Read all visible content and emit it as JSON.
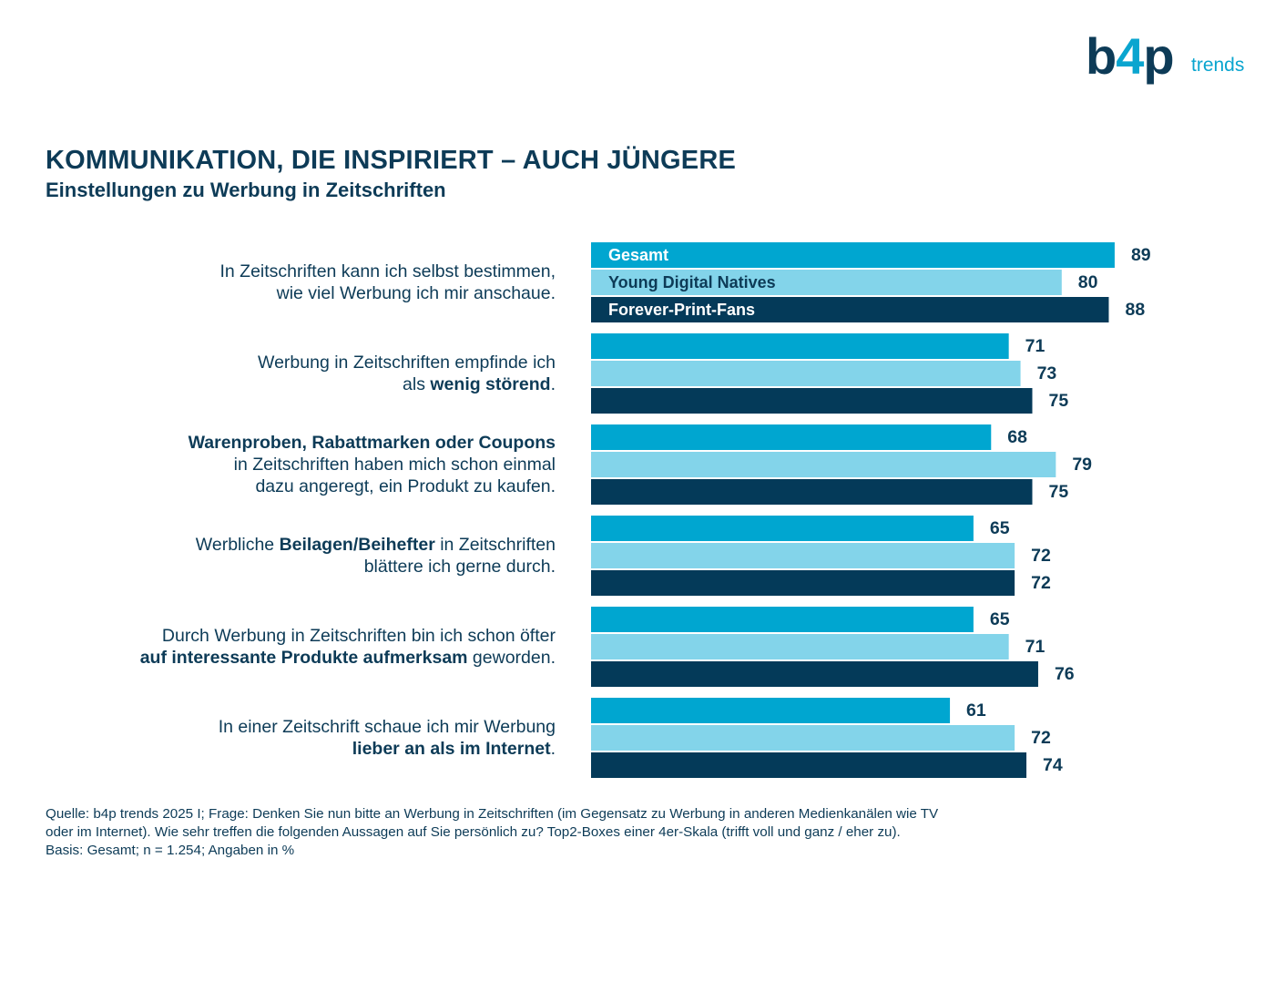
{
  "logo": {
    "brand": "b4p",
    "suffix": "trends"
  },
  "title": "KOMMUNIKATION, DIE INSPIRIERT – AUCH JÜNGERE",
  "subtitle": "Einstellungen zu Werbung in Zeitschriften",
  "questions": [
    {
      "lines": [
        [
          {
            "text": "In Zeitschriften kann ich selbst bestimmen,",
            "bold": false
          }
        ],
        [
          {
            "text": "wie viel Werbung ich mir anschaue.",
            "bold": false
          }
        ]
      ]
    },
    {
      "lines": [
        [
          {
            "text": "Werbung in Zeitschriften empfinde ich",
            "bold": false
          }
        ],
        [
          {
            "text": "als ",
            "bold": false
          },
          {
            "text": "wenig störend",
            "bold": true
          },
          {
            "text": ".",
            "bold": false
          }
        ]
      ]
    },
    {
      "lines": [
        [
          {
            "text": "Warenproben, Rabattmarken oder Coupons",
            "bold": true
          }
        ],
        [
          {
            "text": "in Zeitschriften haben mich schon einmal",
            "bold": false
          }
        ],
        [
          {
            "text": "dazu angeregt, ein Produkt zu kaufen.",
            "bold": false
          }
        ]
      ]
    },
    {
      "lines": [
        [
          {
            "text": "Werbliche ",
            "bold": false
          },
          {
            "text": "Beilagen/Beihefter",
            "bold": true
          },
          {
            "text": " in Zeitschriften",
            "bold": false
          }
        ],
        [
          {
            "text": "blättere ich gerne durch.",
            "bold": false
          }
        ]
      ]
    },
    {
      "lines": [
        [
          {
            "text": "Durch Werbung in Zeitschriften bin ich schon öfter",
            "bold": false
          }
        ],
        [
          {
            "text": "auf interessante Produkte aufmerksam",
            "bold": true
          },
          {
            "text": " geworden.",
            "bold": false
          }
        ]
      ]
    },
    {
      "lines": [
        [
          {
            "text": "In einer Zeitschrift schaue ich mir Werbung",
            "bold": false
          }
        ],
        [
          {
            "text": "lieber an als im Internet",
            "bold": true
          },
          {
            "text": ".",
            "bold": false
          }
        ]
      ]
    }
  ],
  "chart_data": {
    "type": "bar",
    "orientation": "horizontal",
    "categories": [
      "In Zeitschriften kann ich selbst bestimmen, wie viel Werbung ich mir anschaue.",
      "Werbung in Zeitschriften empfinde ich als wenig störend.",
      "Warenproben, Rabattmarken oder Coupons in Zeitschriften haben mich schon einmal dazu angeregt, ein Produkt zu kaufen.",
      "Werbliche Beilagen/Beihefter in Zeitschriften blättere ich gerne durch.",
      "Durch Werbung in Zeitschriften bin ich schon öfter auf interessante Produkte aufmerksam geworden.",
      "In einer Zeitschrift schaue ich mir Werbung lieber an als im Internet."
    ],
    "series": [
      {
        "name": "Gesamt",
        "color": "#00a6d0",
        "label_color": "#ffffff",
        "values": [
          89,
          71,
          68,
          65,
          65,
          61
        ]
      },
      {
        "name": "Young Digital Natives",
        "color": "#83d4ea",
        "label_color": "#0d3b57",
        "values": [
          80,
          73,
          79,
          72,
          71,
          72
        ]
      },
      {
        "name": "Forever-Print-Fans",
        "color": "#043a59",
        "label_color": "#ffffff",
        "values": [
          88,
          75,
          75,
          72,
          76,
          74
        ]
      }
    ],
    "xlim": [
      0,
      100
    ],
    "data_labels": true,
    "legend": "inside-first-group",
    "grid": false
  },
  "footnote": [
    "Quelle: b4p trends 2025 I; Frage: Denken Sie nun bitte an Werbung in Zeitschriften (im Gegensatz zu Werbung in anderen Medienkanälen wie TV",
    "oder im Internet). Wie sehr treffen die folgenden Aussagen auf Sie persönlich zu? Top2-Boxes einer 4er-Skala (trifft voll und ganz / eher zu).",
    "Basis: Gesamt; n = 1.254; Angaben in %"
  ]
}
